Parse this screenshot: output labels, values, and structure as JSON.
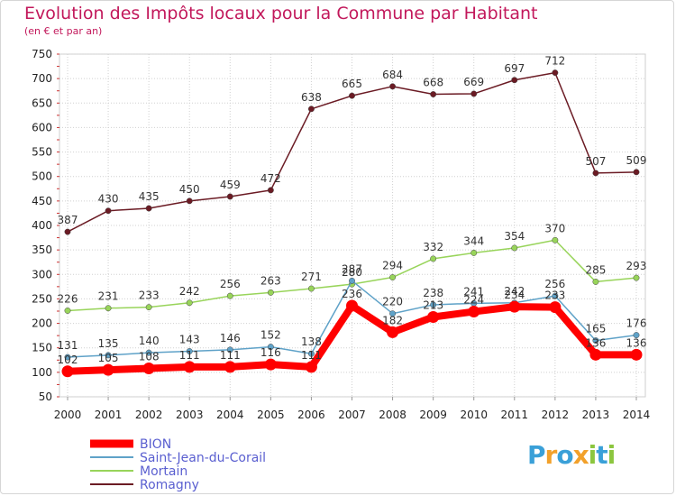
{
  "header": {
    "title": "Evolution des Impôts locaux pour la Commune par Habitant",
    "subtitle": "(en € et par an)"
  },
  "logo": {
    "text": "Proxiti",
    "letters": [
      "P",
      "r",
      "o",
      "x",
      "i",
      "t",
      "i"
    ],
    "colors": [
      "#3aa0d8",
      "#f2a12b",
      "#3aa0d8",
      "#f2a12b",
      "#8cc63f",
      "#3aa0d8",
      "#8cc63f"
    ]
  },
  "chart_data": {
    "type": "line",
    "title": "Evolution des Impôts locaux pour la Commune par Habitant",
    "subtitle": "(en € et par an)",
    "xlabel": "",
    "ylabel": "",
    "x": [
      2000,
      2001,
      2002,
      2003,
      2004,
      2005,
      2006,
      2007,
      2008,
      2009,
      2010,
      2011,
      2012,
      2013,
      2014
    ],
    "ylim": [
      50,
      750
    ],
    "yticks": [
      50,
      100,
      150,
      200,
      250,
      300,
      350,
      400,
      450,
      500,
      550,
      600,
      650,
      700,
      750
    ],
    "grid": true,
    "legend": "bottom-left",
    "series": [
      {
        "name": "BION",
        "color": "#ff0000",
        "values": [
          102,
          105,
          108,
          111,
          111,
          116,
          111,
          236,
          182,
          213,
          224,
          234,
          233,
          136,
          136
        ]
      },
      {
        "name": "Saint-Jean-du-Corail",
        "color": "#5fa2c8",
        "values": [
          131,
          135,
          140,
          143,
          146,
          152,
          138,
          287,
          220,
          238,
          241,
          242,
          256,
          165,
          176
        ]
      },
      {
        "name": "Mortain",
        "color": "#98d45a",
        "values": [
          226,
          231,
          233,
          242,
          256,
          263,
          271,
          280,
          294,
          332,
          344,
          354,
          370,
          285,
          293
        ]
      },
      {
        "name": "Romagny",
        "color": "#6b1b24",
        "values": [
          387,
          430,
          435,
          450,
          459,
          472,
          638,
          665,
          684,
          668,
          669,
          697,
          712,
          507,
          509
        ]
      }
    ]
  }
}
